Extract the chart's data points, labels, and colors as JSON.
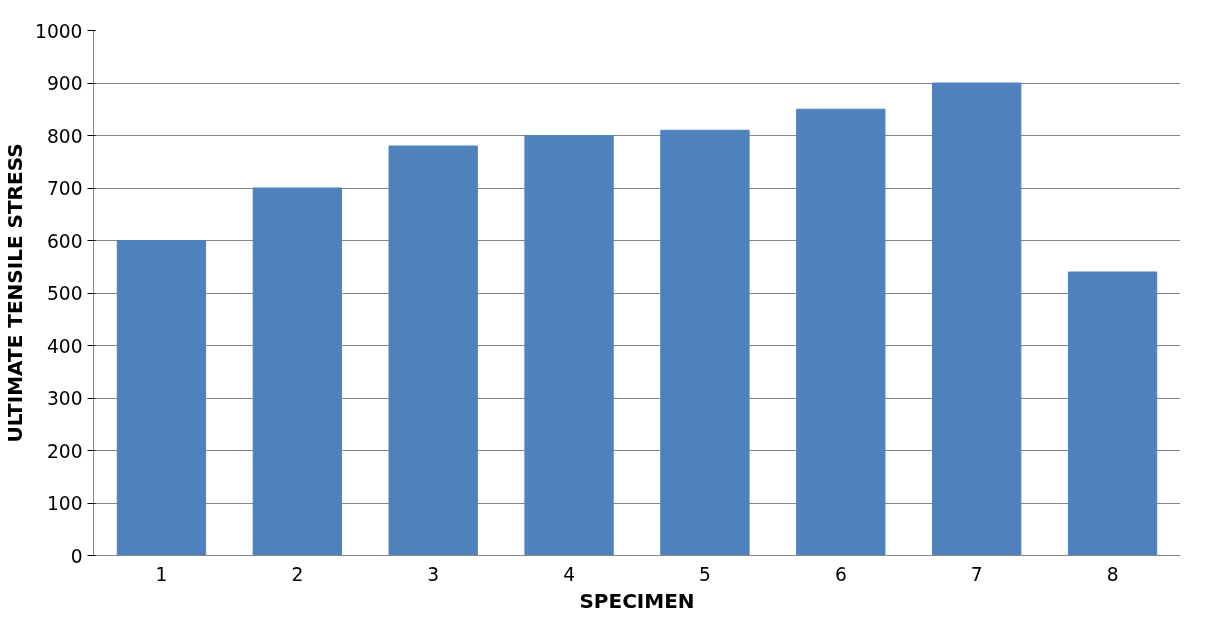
{
  "chart_data": {
    "type": "bar",
    "xlabel": "SPECIMEN",
    "ylabel": "ULTIMATE TENSILE STRESS",
    "categories": [
      "1",
      "2",
      "3",
      "4",
      "5",
      "6",
      "7",
      "8"
    ],
    "values": [
      600,
      700,
      780,
      800,
      810,
      850,
      900,
      540
    ],
    "color": "#4f81bd",
    "ylim": [
      0,
      1000
    ],
    "yticks": [
      0,
      100,
      200,
      300,
      400,
      500,
      600,
      700,
      800,
      900,
      1000
    ],
    "grid": "y"
  }
}
